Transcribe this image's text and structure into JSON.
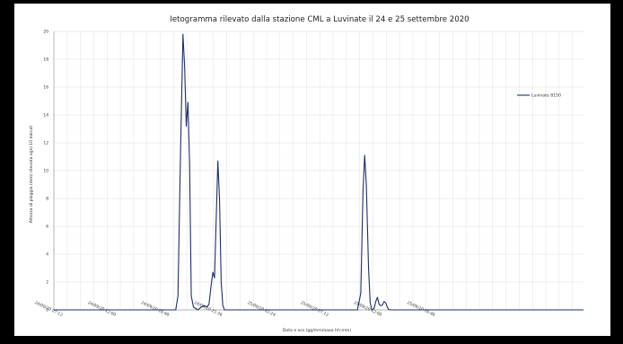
{
  "chart_data": {
    "type": "line",
    "title": "Ietogramma rilevato dalla stazione CML a Luvinate il 24 e 25 settembre 2020",
    "xlabel": "Data e ora (gg/mm/aaaa hh:mm)",
    "ylabel": "Altezza di pioggia (mm) rilevata ogni 10 minuti",
    "ylim": [
      0,
      20
    ],
    "yticks": [
      "0",
      "2",
      "4",
      "6",
      "8",
      "10",
      "12",
      "14",
      "16",
      "18",
      "20"
    ],
    "xrange_hours": [
      7.2,
      55.0
    ],
    "xticks": [
      {
        "label": "24/09/20 07:12",
        "hour": 7.2
      },
      {
        "label": "24/09/20 12:00",
        "hour": 12.0
      },
      {
        "label": "24/09/20 16:48",
        "hour": 16.8
      },
      {
        "label": "24/09/20 21:36",
        "hour": 21.6
      },
      {
        "label": "25/09/20 02:24",
        "hour": 26.4
      },
      {
        "label": "25/09/20 07:12",
        "hour": 31.2
      },
      {
        "label": "25/09/20 12:00",
        "hour": 36.0
      },
      {
        "label": "25/09/20 16:48",
        "hour": 40.8
      }
    ],
    "grid": true,
    "legend_position": "right",
    "series": [
      {
        "name": "Luvinate 8150",
        "color": "#1f2d6b",
        "points": [
          [
            7.2,
            0
          ],
          [
            17.7,
            0
          ],
          [
            18.2,
            0
          ],
          [
            18.4,
            1.0
          ],
          [
            18.6,
            10.0
          ],
          [
            18.85,
            19.8
          ],
          [
            19.0,
            17.5
          ],
          [
            19.15,
            13.2
          ],
          [
            19.3,
            14.9
          ],
          [
            19.45,
            10.5
          ],
          [
            19.6,
            1.0
          ],
          [
            19.8,
            0.2
          ],
          [
            20.2,
            0
          ],
          [
            20.5,
            0.2
          ],
          [
            20.8,
            0.3
          ],
          [
            21.0,
            0.2
          ],
          [
            21.2,
            0.4
          ],
          [
            21.4,
            1.8
          ],
          [
            21.55,
            2.7
          ],
          [
            21.7,
            2.3
          ],
          [
            21.85,
            6.5
          ],
          [
            22.0,
            10.7
          ],
          [
            22.15,
            8.0
          ],
          [
            22.3,
            2.0
          ],
          [
            22.45,
            0.3
          ],
          [
            22.6,
            0
          ],
          [
            34.6,
            0
          ],
          [
            34.9,
            1.2
          ],
          [
            35.1,
            8.5
          ],
          [
            35.25,
            11.1
          ],
          [
            35.4,
            9.0
          ],
          [
            35.6,
            3.0
          ],
          [
            35.75,
            0.5
          ],
          [
            35.9,
            0
          ],
          [
            36.1,
            0.1
          ],
          [
            36.25,
            0.6
          ],
          [
            36.4,
            0.9
          ],
          [
            36.55,
            0.4
          ],
          [
            36.7,
            0.3
          ],
          [
            36.85,
            0.35
          ],
          [
            37.0,
            0.6
          ],
          [
            37.15,
            0.5
          ],
          [
            37.3,
            0.2
          ],
          [
            37.4,
            0.05
          ],
          [
            37.6,
            0
          ],
          [
            55.0,
            0
          ]
        ]
      }
    ]
  }
}
